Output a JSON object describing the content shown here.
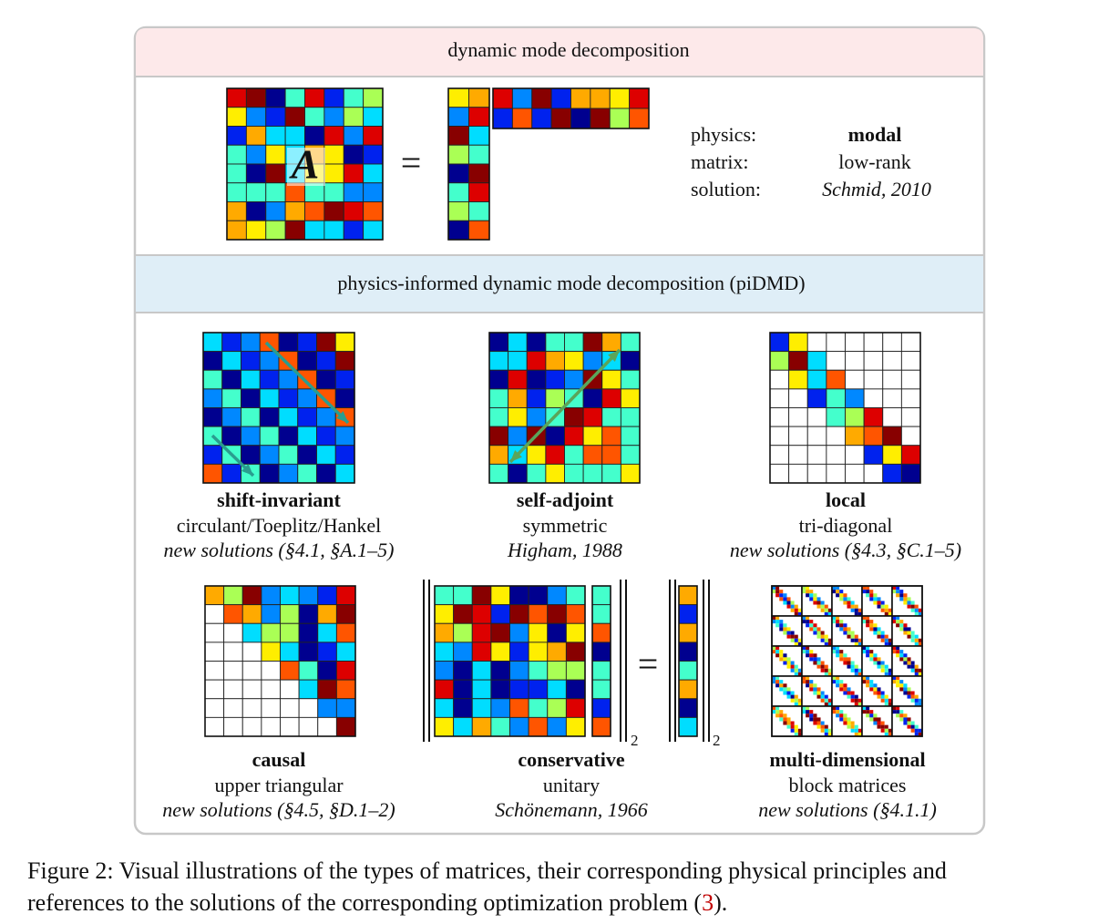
{
  "panel": {
    "header_top": "dynamic mode decomposition",
    "dmd": {
      "matrix_symbol": "A",
      "equals": "=",
      "physics_label": "physics:",
      "physics": "modal",
      "matrix_label": "matrix:",
      "matrix": "low-rank",
      "solution_label": "solution:",
      "solution": "Schmid, 2010"
    },
    "header_bottom": "physics-informed dynamic mode decomposition (piDMD)",
    "items": [
      {
        "title": "shift-invariant",
        "subtitle": "circulant/Toeplitz/Hankel",
        "reference": "new solutions (§4.1, §A.1–5)"
      },
      {
        "title": "self-adjoint",
        "subtitle": "symmetric",
        "reference": "Higham, 1988"
      },
      {
        "title": "local",
        "subtitle": "tri-diagonal",
        "reference": "new solutions (§4.3, §C.1–5)"
      },
      {
        "title": "causal",
        "subtitle": "upper triangular",
        "reference": "new solutions (§4.5, §D.1–2)"
      },
      {
        "title": "conservative",
        "subtitle": "unitary",
        "reference": "Schönemann, 1966"
      },
      {
        "title": "multi-dimensional",
        "subtitle": "block matrices",
        "reference": "new solutions (§4.1.1)"
      }
    ],
    "conservative_equals": "=",
    "norm_subscripts": [
      "2",
      "2"
    ]
  },
  "caption": {
    "line1": "Figure 2: Visual illustrations of the types of matrices, their corresponding physical principles and",
    "line2": "references to the solutions of the corresponding optimization problem (",
    "ref": "3",
    "end": ")."
  }
}
